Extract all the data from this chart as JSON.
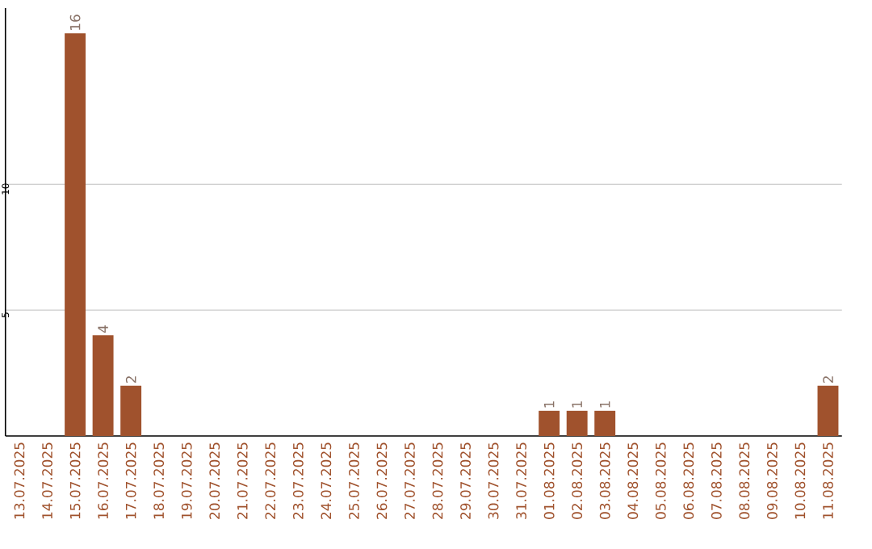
{
  "chart_data": {
    "type": "bar",
    "categories": [
      "13.07.2025",
      "14.07.2025",
      "15.07.2025",
      "16.07.2025",
      "17.07.2025",
      "18.07.2025",
      "19.07.2025",
      "20.07.2025",
      "21.07.2025",
      "22.07.2025",
      "23.07.2025",
      "24.07.2025",
      "25.07.2025",
      "26.07.2025",
      "27.07.2025",
      "28.07.2025",
      "29.07.2025",
      "30.07.2025",
      "31.07.2025",
      "01.08.2025",
      "02.08.2025",
      "03.08.2025",
      "04.08.2025",
      "05.08.2025",
      "06.08.2025",
      "07.08.2025",
      "08.08.2025",
      "09.08.2025",
      "10.08.2025",
      "11.08.2025"
    ],
    "values": [
      0,
      0,
      16,
      4,
      2,
      0,
      0,
      0,
      0,
      0,
      0,
      0,
      0,
      0,
      0,
      0,
      0,
      0,
      0,
      1,
      1,
      1,
      0,
      0,
      0,
      0,
      0,
      0,
      0,
      2
    ],
    "value_labels": [
      null,
      null,
      "16",
      "4",
      "2",
      null,
      null,
      null,
      null,
      null,
      null,
      null,
      null,
      null,
      null,
      null,
      null,
      null,
      null,
      "1",
      "1",
      "1",
      null,
      null,
      null,
      null,
      null,
      null,
      null,
      "2"
    ],
    "color": "#a0522d",
    "ylim": [
      0,
      17
    ],
    "yticks": [
      5,
      10
    ],
    "grid": "y"
  }
}
